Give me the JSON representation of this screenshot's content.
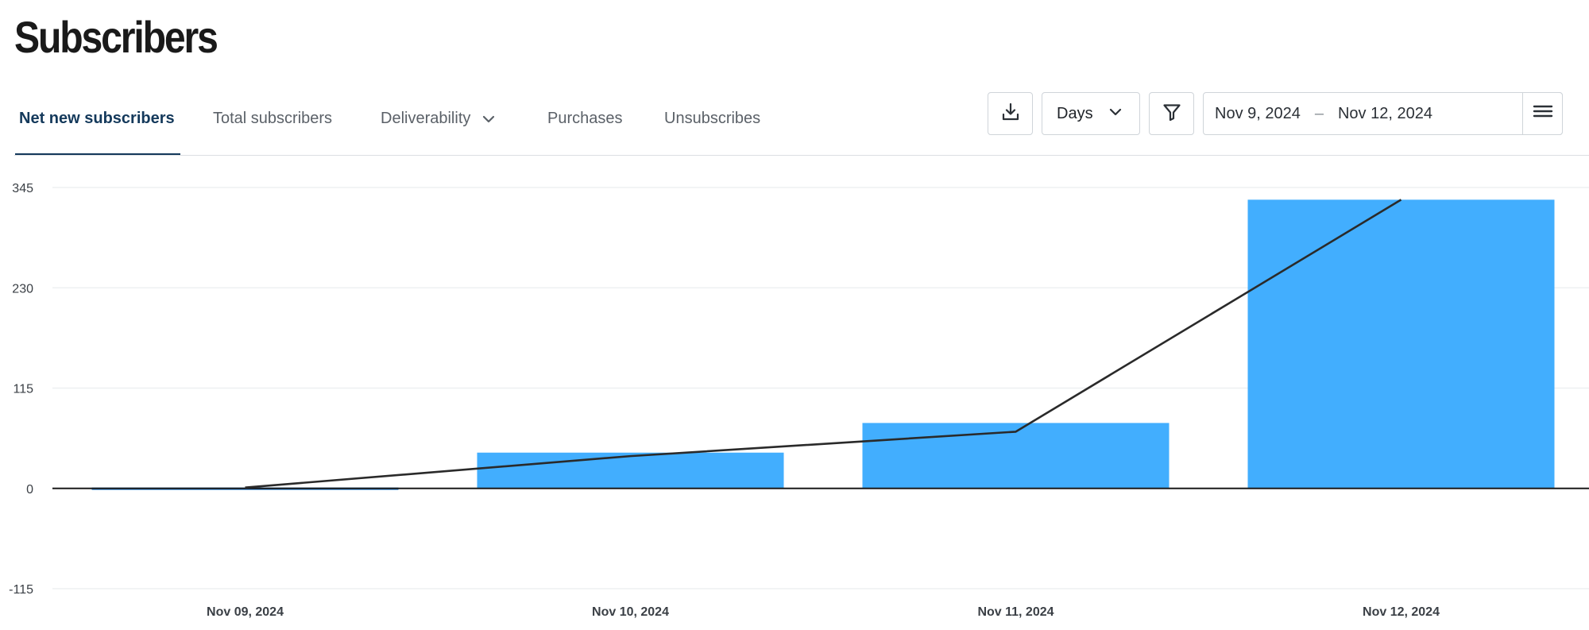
{
  "page": {
    "title": "Subscribers"
  },
  "tabs": [
    {
      "label": "Net new subscribers",
      "active": true
    },
    {
      "label": "Total subscribers",
      "active": false
    },
    {
      "label": "Deliverability",
      "active": false,
      "dropdown": true
    },
    {
      "label": "Purchases",
      "active": false
    },
    {
      "label": "Unsubscribes",
      "active": false
    }
  ],
  "toolbar": {
    "download_icon": "download-icon",
    "interval_value": "Days",
    "filter_icon": "filter-icon",
    "date_start": "Nov 9, 2024",
    "date_separator": "–",
    "date_end": "Nov 12, 2024",
    "menu_icon": "menu-icon"
  },
  "colors": {
    "bar": "#42aefe",
    "line": "#2a2a2a",
    "active_tab": "#14395b"
  },
  "chart_data": {
    "type": "bar",
    "categories": [
      "Nov 09, 2024",
      "Nov 10, 2024",
      "Nov 11, 2024",
      "Nov 12, 2024"
    ],
    "values": [
      1,
      41,
      75,
      331
    ],
    "line_values": [
      1,
      37,
      65,
      331
    ],
    "y_ticks": [
      -115,
      0,
      115,
      230,
      345
    ],
    "ylim": [
      -115,
      345
    ],
    "grid": true,
    "title": "",
    "xlabel": "",
    "ylabel": ""
  }
}
